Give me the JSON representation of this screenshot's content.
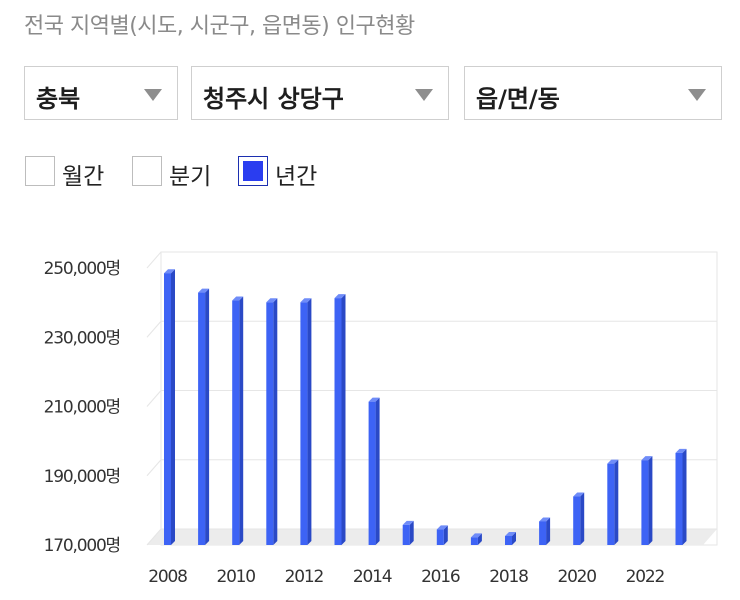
{
  "page": {
    "title": "전국 지역별(시도, 시군구, 읍면동) 인구현황"
  },
  "filters": {
    "province": {
      "value": "충북"
    },
    "city": {
      "value": "청주시 상당구"
    },
    "town": {
      "value": "읍/면/동"
    }
  },
  "period": {
    "monthly": {
      "label": "월간",
      "checked": false
    },
    "quarterly": {
      "label": "분기",
      "checked": false
    },
    "yearly": {
      "label": "년간",
      "checked": true
    }
  },
  "colors": {
    "bar_front": "#3d63f5",
    "bar_side": "#2a49c6",
    "bar_top": "#6f8cf8",
    "grid": "#e6e6e6",
    "floor": "#ececec",
    "checked_fill": "#2a3df0"
  },
  "chart_data": {
    "type": "bar",
    "style": "3d-column",
    "grid": true,
    "categories": [
      "2008",
      "2009",
      "2010",
      "2011",
      "2012",
      "2013",
      "2014",
      "2015",
      "2016",
      "2017",
      "2018",
      "2019",
      "2020",
      "2021",
      "2022",
      "2023"
    ],
    "values": [
      248500,
      242900,
      240600,
      240100,
      240100,
      241300,
      211400,
      175800,
      174500,
      172200,
      172600,
      176800,
      184000,
      193500,
      194500,
      196600
    ],
    "x_tick_labels": [
      "2008",
      "2010",
      "2012",
      "2014",
      "2016",
      "2018",
      "2020",
      "2022"
    ],
    "y_ticks": [
      {
        "value": 170000,
        "label": "170,000명"
      },
      {
        "value": 190000,
        "label": "190,000명"
      },
      {
        "value": 210000,
        "label": "210,000명"
      },
      {
        "value": 230000,
        "label": "230,000명"
      },
      {
        "value": 250000,
        "label": "250,000명"
      }
    ],
    "ylim": [
      170000,
      250000
    ],
    "xlabel": "",
    "ylabel": ""
  }
}
